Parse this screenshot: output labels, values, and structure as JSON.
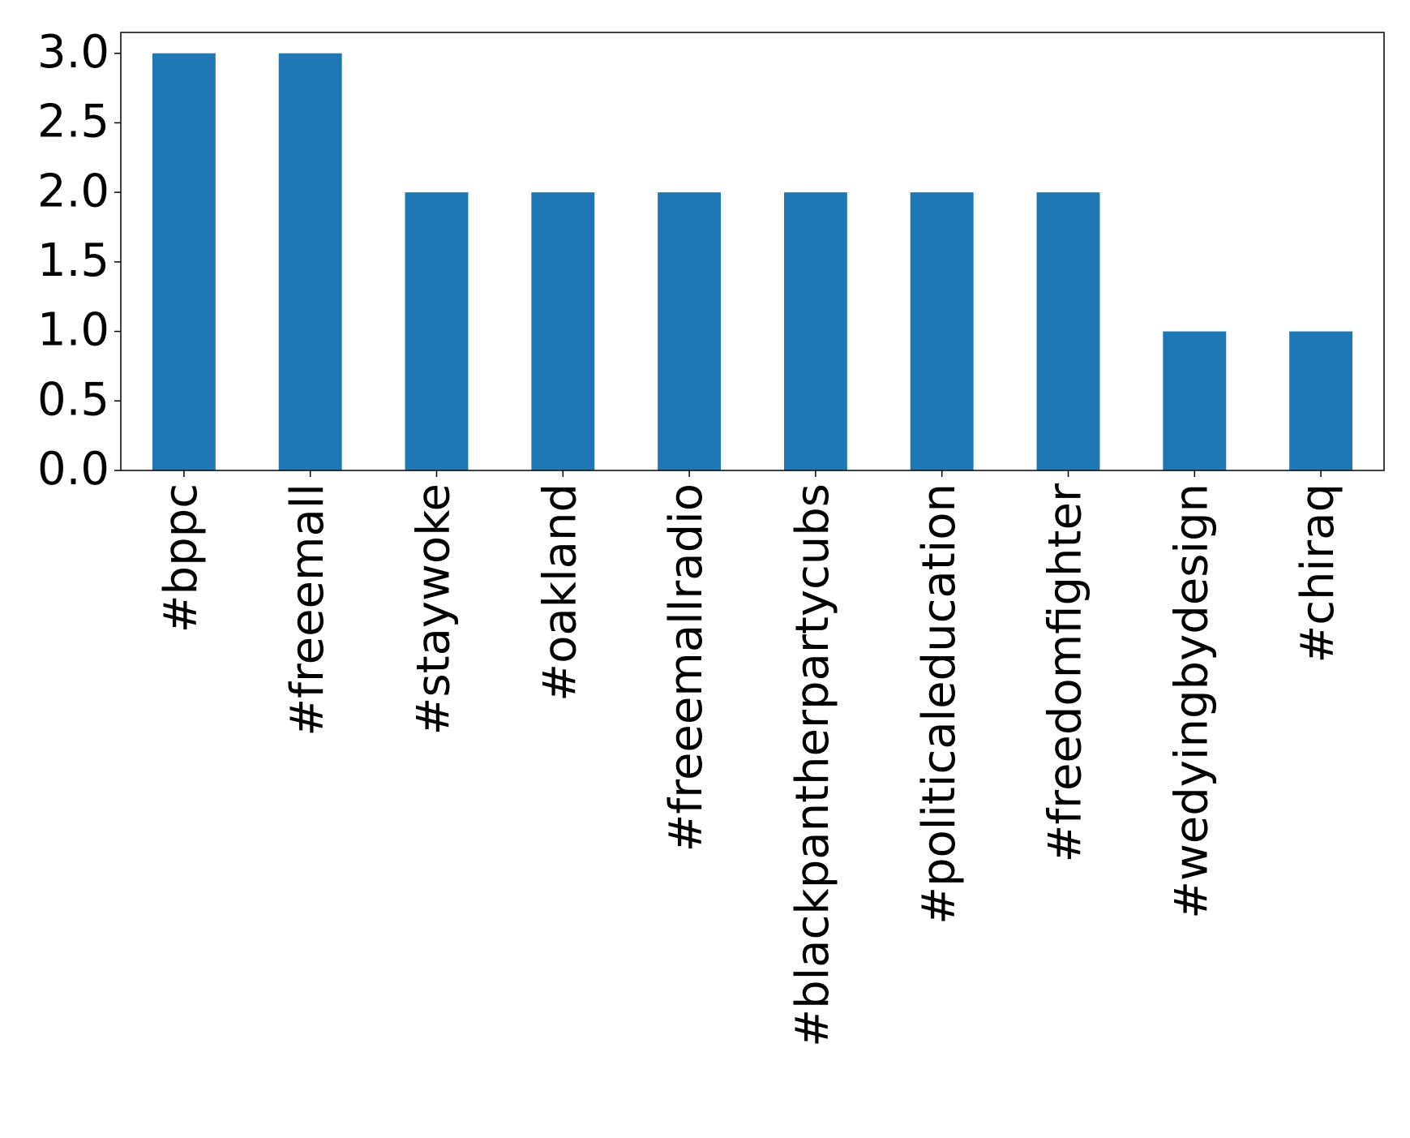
{
  "chart_data": {
    "type": "bar",
    "categories": [
      "#bppc",
      "#freeemall",
      "#staywoke",
      "#oakland",
      "#freeemallradio",
      "#blackpantherpartycubs",
      "#politicaleducation",
      "#freedomfighter",
      "#wedyingbydesign",
      "#chiraq"
    ],
    "values": [
      3,
      3,
      2,
      2,
      2,
      2,
      2,
      2,
      1,
      1
    ],
    "color": "#1f77b4",
    "ylim": [
      0,
      3.15
    ],
    "yticks": [
      {
        "value": 0,
        "label": "0.0"
      },
      {
        "value": 0.5,
        "label": "0.5"
      },
      {
        "value": 1,
        "label": "1.0"
      },
      {
        "value": 1.5,
        "label": "1.5"
      },
      {
        "value": 2,
        "label": "2.0"
      },
      {
        "value": 2.5,
        "label": "2.5"
      },
      {
        "value": 3,
        "label": "3.0"
      }
    ],
    "grid": false
  }
}
